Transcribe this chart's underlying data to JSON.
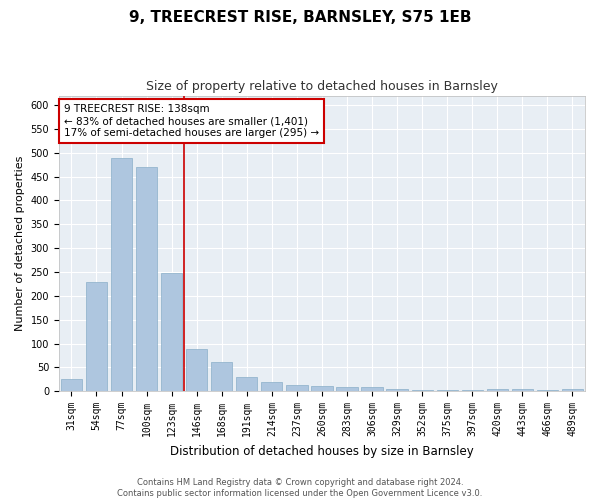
{
  "title1": "9, TREECREST RISE, BARNSLEY, S75 1EB",
  "title2": "Size of property relative to detached houses in Barnsley",
  "xlabel": "Distribution of detached houses by size in Barnsley",
  "ylabel": "Number of detached properties",
  "categories": [
    "31sqm",
    "54sqm",
    "77sqm",
    "100sqm",
    "123sqm",
    "146sqm",
    "168sqm",
    "191sqm",
    "214sqm",
    "237sqm",
    "260sqm",
    "283sqm",
    "306sqm",
    "329sqm",
    "352sqm",
    "375sqm",
    "397sqm",
    "420sqm",
    "443sqm",
    "466sqm",
    "489sqm"
  ],
  "values": [
    25,
    230,
    490,
    470,
    248,
    88,
    62,
    30,
    20,
    13,
    10,
    8,
    8,
    5,
    3,
    3,
    3,
    5,
    5,
    2,
    5
  ],
  "bar_color": "#aec6df",
  "bar_edge_color": "#8aaec8",
  "vline_x": 4.5,
  "vline_color": "#cc0000",
  "annotation_text": "9 TREECREST RISE: 138sqm\n← 83% of detached houses are smaller (1,401)\n17% of semi-detached houses are larger (295) →",
  "annotation_box_color": "#ffffff",
  "annotation_box_edge_color": "#cc0000",
  "ylim": [
    0,
    620
  ],
  "yticks": [
    0,
    50,
    100,
    150,
    200,
    250,
    300,
    350,
    400,
    450,
    500,
    550,
    600
  ],
  "footer": "Contains HM Land Registry data © Crown copyright and database right 2024.\nContains public sector information licensed under the Open Government Licence v3.0.",
  "bg_color": "#ffffff",
  "plot_bg_color": "#e8eef4",
  "grid_color": "#ffffff",
  "title1_fontsize": 11,
  "title2_fontsize": 9,
  "annotation_fontsize": 7.5,
  "ylabel_fontsize": 8,
  "xlabel_fontsize": 8.5,
  "tick_fontsize": 7,
  "footer_fontsize": 6
}
